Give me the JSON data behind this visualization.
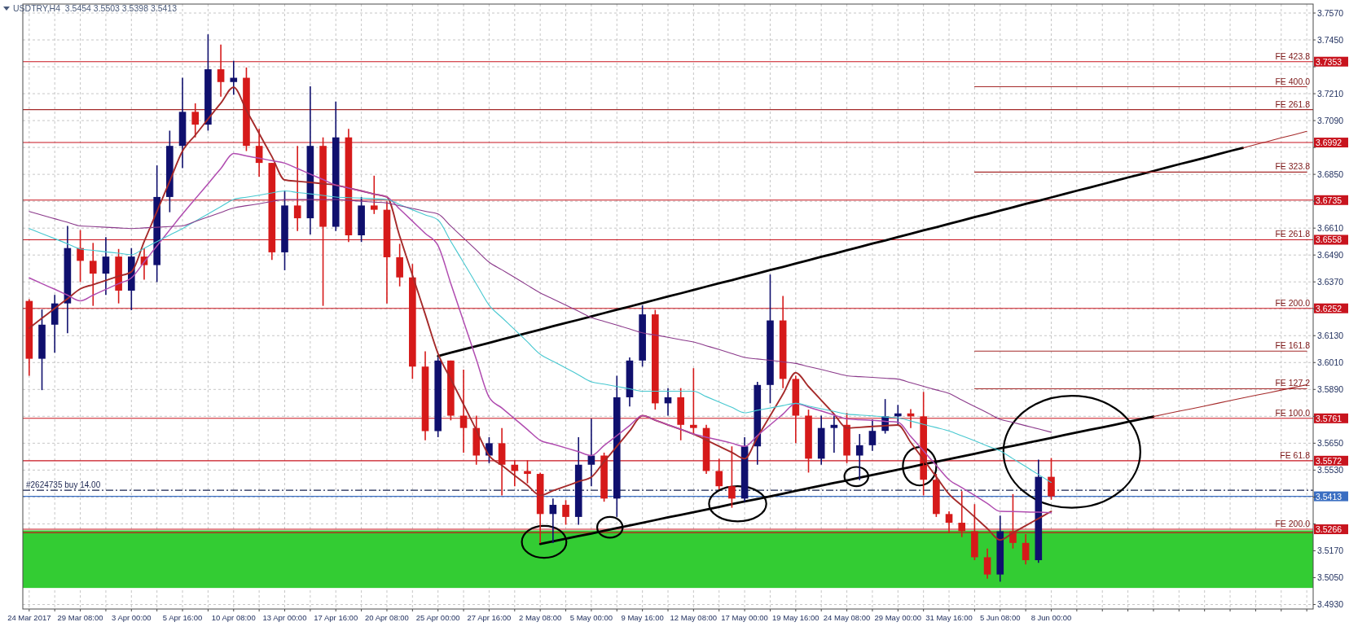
{
  "chart_data": {
    "type": "candlestick",
    "title": "USDTRY,H4  3.5454 3.5503 3.5398 3.5413",
    "categories": [
      "24 Mar 2017",
      null,
      null,
      null,
      "29 Mar 08:00",
      null,
      null,
      null,
      "3 Apr 00:00",
      null,
      null,
      null,
      "5 Apr 16:00",
      null,
      null,
      null,
      "10 Apr 08:00",
      null,
      null,
      null,
      "13 Apr 00:00",
      null,
      null,
      null,
      "17 Apr 16:00",
      null,
      null,
      null,
      "20 Apr 08:00",
      null,
      null,
      null,
      "25 Apr 00:00",
      null,
      null,
      null,
      "27 Apr 16:00",
      null,
      null,
      null,
      "2 May 08:00",
      null,
      null,
      null,
      "5 May 00:00",
      null,
      null,
      null,
      "9 May 16:00",
      null,
      null,
      null,
      "12 May 08:00",
      null,
      null,
      null,
      "17 May 00:00",
      null,
      null,
      null,
      "19 May 16:00",
      null,
      null,
      null,
      "24 May 08:00",
      null,
      null,
      null,
      "29 May 00:00",
      null,
      null,
      null,
      "31 May 16:00",
      null,
      null,
      null,
      "5 Jun 08:00",
      null,
      null,
      null,
      "8 Jun 00:00",
      null,
      null,
      null,
      null,
      null,
      null,
      null,
      null,
      null,
      null,
      null,
      null,
      null,
      null,
      null,
      null,
      null,
      null,
      null,
      null
    ],
    "ohlc": [
      [
        3.6285,
        3.6293,
        3.5951,
        3.6027
      ],
      [
        3.6027,
        3.6247,
        3.5887,
        3.6179
      ],
      [
        3.6179,
        3.6312,
        3.6054,
        3.6274
      ],
      [
        3.6274,
        3.662,
        3.6141,
        3.6521
      ],
      [
        3.6521,
        3.6601,
        3.6369,
        3.6464
      ],
      [
        3.6464,
        3.6544,
        3.6263,
        3.6407
      ],
      [
        3.6407,
        3.657,
        3.6312,
        3.6483
      ],
      [
        3.6483,
        3.6517,
        3.6274,
        3.6331
      ],
      [
        3.6331,
        3.6521,
        3.6244,
        3.6483
      ],
      [
        3.6483,
        3.6521,
        3.638,
        3.6445
      ],
      [
        3.6445,
        3.689,
        3.6369,
        3.6749
      ],
      [
        3.6749,
        3.7045,
        3.6681,
        3.6977
      ],
      [
        3.6977,
        3.7281,
        3.6878,
        3.7129
      ],
      [
        3.7129,
        3.7167,
        3.7015,
        3.7072
      ],
      [
        3.7072,
        3.7475,
        3.7045,
        3.7319
      ],
      [
        3.7319,
        3.7429,
        3.7197,
        3.7262
      ],
      [
        3.7262,
        3.7357,
        3.7205,
        3.7281
      ],
      [
        3.7281,
        3.7327,
        3.6954,
        3.6977
      ],
      [
        3.6977,
        3.7053,
        3.684,
        3.6901
      ],
      [
        3.6901,
        3.6901,
        3.6468,
        3.6502
      ],
      [
        3.6502,
        3.6776,
        3.6422,
        3.6711
      ],
      [
        3.6711,
        3.6977,
        3.6597,
        3.6654
      ],
      [
        3.6654,
        3.7243,
        3.6582,
        3.6977
      ],
      [
        3.6977,
        3.7015,
        3.6263,
        3.6616
      ],
      [
        3.6616,
        3.7175,
        3.6597,
        3.7015
      ],
      [
        3.7015,
        3.7053,
        3.6548,
        3.6578
      ],
      [
        3.6578,
        3.6749,
        3.6548,
        3.6711
      ],
      [
        3.6711,
        3.6844,
        3.6673,
        3.6692
      ],
      [
        3.6692,
        3.673,
        3.6274,
        3.648
      ],
      [
        3.648,
        3.654,
        3.635,
        3.639
      ],
      [
        3.639,
        3.645,
        3.5937,
        3.5992
      ],
      [
        3.5992,
        3.606,
        3.5663,
        3.5704
      ],
      [
        3.5704,
        3.6033,
        3.5677,
        3.6019
      ],
      [
        3.6019,
        3.6019,
        3.5752,
        3.5773
      ],
      [
        3.5773,
        3.5978,
        3.5608,
        3.5718
      ],
      [
        3.5718,
        3.5773,
        3.5554,
        3.5595
      ],
      [
        3.5595,
        3.5677,
        3.5561,
        3.565
      ],
      [
        3.565,
        3.5718,
        3.5417,
        3.5554
      ],
      [
        3.5554,
        3.5574,
        3.5458,
        3.5526
      ],
      [
        3.5526,
        3.5574,
        3.5471,
        3.5513
      ],
      [
        3.5513,
        3.5519,
        3.5204,
        3.5334
      ],
      [
        3.5334,
        3.5403,
        3.5204,
        3.5375
      ],
      [
        3.5375,
        3.5396,
        3.5286,
        3.5321
      ],
      [
        3.5321,
        3.5677,
        3.5286,
        3.5554
      ],
      [
        3.5554,
        3.5759,
        3.5458,
        3.5595
      ],
      [
        3.5595,
        3.5608,
        3.5389,
        3.5403
      ],
      [
        3.5403,
        3.5951,
        3.5321,
        3.5855
      ],
      [
        3.5855,
        3.6033,
        3.5814,
        3.6019
      ],
      [
        3.6019,
        3.6266,
        3.5992,
        3.6225
      ],
      [
        3.6225,
        3.6245,
        3.58,
        3.5828
      ],
      [
        3.5828,
        3.5896,
        3.5773,
        3.5855
      ],
      [
        3.5855,
        3.5896,
        3.5663,
        3.5732
      ],
      [
        3.5732,
        3.5985,
        3.5691,
        3.5718
      ],
      [
        3.5718,
        3.5732,
        3.5513,
        3.5526
      ],
      [
        3.5526,
        3.5581,
        3.5444,
        3.5458
      ],
      [
        3.5458,
        3.5636,
        3.5362,
        3.5403
      ],
      [
        3.5403,
        3.5677,
        3.5389,
        3.5636
      ],
      [
        3.5636,
        3.5924,
        3.5554,
        3.591
      ],
      [
        3.591,
        3.6403,
        3.5828,
        3.6198
      ],
      [
        3.6198,
        3.6307,
        3.5896,
        3.5937
      ],
      [
        3.5937,
        3.5951,
        3.565,
        3.5773
      ],
      [
        3.5773,
        3.58,
        3.5519,
        3.5581
      ],
      [
        3.5581,
        3.5773,
        3.5554,
        3.5718
      ],
      [
        3.5718,
        3.5773,
        3.5608,
        3.5732
      ],
      [
        3.5732,
        3.5786,
        3.5561,
        3.5595
      ],
      [
        3.5595,
        3.5691,
        3.5485,
        3.5641
      ],
      [
        3.5641,
        3.5757,
        3.5616,
        3.5705
      ],
      [
        3.5705,
        3.5847,
        3.5693,
        3.577
      ],
      [
        3.577,
        3.5821,
        3.5731,
        3.5783
      ],
      [
        3.5783,
        3.5802,
        3.5718,
        3.577
      ],
      [
        3.577,
        3.5879,
        3.5417,
        3.5487
      ],
      [
        3.5487,
        3.5513,
        3.5321,
        3.5334
      ],
      [
        3.5334,
        3.5346,
        3.525,
        3.5295
      ],
      [
        3.5295,
        3.5436,
        3.5231,
        3.5257
      ],
      [
        3.5257,
        3.5378,
        3.5128,
        3.5141
      ],
      [
        3.5141,
        3.518,
        3.5045,
        3.5064
      ],
      [
        3.5064,
        3.5327,
        3.5032,
        3.5257
      ],
      [
        3.5257,
        3.5423,
        3.518,
        3.5205
      ],
      [
        3.5205,
        3.5244,
        3.5109,
        3.5128
      ],
      [
        3.5128,
        3.5577,
        3.5116,
        3.55
      ],
      [
        3.55,
        3.5584,
        3.5398,
        3.5413
      ],
      null,
      null,
      null,
      null,
      null,
      null,
      null,
      null,
      null,
      null,
      null,
      null,
      null,
      null,
      null,
      null,
      null,
      null,
      null,
      null
    ],
    "colors": [
      "#d61a1a",
      "#10106e",
      "#10106e",
      "#10106e",
      "#d61a1a",
      "#d61a1a",
      "#10106e",
      "#d61a1a",
      "#10106e",
      "#d61a1a",
      "#10106e",
      "#10106e",
      "#10106e",
      "#d61a1a",
      "#10106e",
      "#d61a1a",
      "#10106e",
      "#d61a1a",
      "#d61a1a",
      "#d61a1a",
      "#10106e",
      "#d61a1a",
      "#10106e",
      "#d61a1a",
      "#10106e",
      "#d61a1a",
      "#10106e",
      "#d61a1a",
      "#d61a1a",
      "#d61a1a",
      "#d61a1a",
      "#d61a1a",
      "#10106e",
      "#d61a1a",
      "#d61a1a",
      "#d61a1a",
      "#10106e",
      "#d61a1a",
      "#d61a1a",
      "#d61a1a",
      "#d61a1a",
      "#10106e",
      "#d61a1a",
      "#10106e",
      "#10106e",
      "#d61a1a",
      "#10106e",
      "#10106e",
      "#10106e",
      "#d61a1a",
      "#10106e",
      "#d61a1a",
      "#d61a1a",
      "#d61a1a",
      "#d61a1a",
      "#d61a1a",
      "#10106e",
      "#10106e",
      "#10106e",
      "#d61a1a",
      "#d61a1a",
      "#d61a1a",
      "#10106e",
      "#10106e",
      "#d61a1a",
      "#10106e",
      "#10106e",
      "#10106e",
      "#10106e",
      "#d61a1a",
      "#d61a1a",
      "#d61a1a",
      "#d61a1a",
      "#d61a1a",
      "#d61a1a",
      "#d61a1a",
      "#10106e",
      "#d61a1a",
      "#d61a1a",
      "#10106e",
      "#d61a1a",
      null,
      null,
      null,
      null,
      null,
      null,
      null,
      null,
      null,
      null,
      null,
      null,
      null,
      null,
      null,
      null,
      null,
      null,
      null,
      null
    ],
    "series": [
      {
        "type": "line",
        "color": "#a52a2a",
        "values": [
          3.6164,
          3.6208,
          3.6252,
          3.6295,
          3.6339,
          3.6358,
          3.6377,
          3.6396,
          3.6415,
          3.655,
          3.6685,
          3.6819,
          3.6954,
          3.7025,
          3.7097,
          3.7168,
          3.7239,
          3.7136,
          3.7032,
          3.6929,
          3.6825,
          3.6819,
          3.6814,
          3.6808,
          3.6802,
          3.6789,
          3.6776,
          3.6762,
          3.6749,
          3.6574,
          3.64,
          3.6225,
          3.605,
          3.5936,
          3.5823,
          3.5709,
          3.5595,
          3.5551,
          3.5506,
          3.5462,
          3.5417,
          3.5438,
          3.5458,
          3.5479,
          3.5499,
          3.5568,
          3.5636,
          3.5705,
          3.5773,
          3.5753,
          3.5732,
          3.5712,
          3.5691,
          3.5664,
          3.5636,
          3.5609,
          3.5581,
          3.5677,
          3.5773,
          3.5869,
          3.5965,
          3.5903,
          3.5842,
          3.578,
          3.5718,
          3.5721,
          3.5725,
          3.5728,
          3.5731,
          3.5654,
          3.5577,
          3.55,
          3.5423,
          3.5372,
          3.5321,
          3.5269,
          3.5218,
          3.525,
          3.5282,
          3.5314,
          3.5346,
          null,
          null,
          null,
          null,
          null,
          null,
          null,
          null,
          null,
          null,
          null,
          null,
          null,
          null,
          null,
          null,
          null,
          null,
          null,
          null
        ]
      },
      {
        "type": "line",
        "color": "#b04cb0",
        "values": [
          3.6388,
          3.6362,
          3.6337,
          3.6311,
          3.6285,
          3.6311,
          3.6337,
          3.6362,
          3.6388,
          3.6459,
          3.6531,
          3.6602,
          3.6673,
          3.6741,
          3.6808,
          3.6876,
          3.6943,
          3.6932,
          3.6922,
          3.6911,
          3.69,
          3.6876,
          3.6851,
          3.6827,
          3.6802,
          3.6789,
          3.6776,
          3.6762,
          3.6749,
          3.6695,
          3.6641,
          3.6586,
          3.6532,
          3.6363,
          3.6194,
          3.6024,
          3.5855,
          3.5807,
          3.5759,
          3.5711,
          3.5663,
          3.5646,
          3.5629,
          3.5612,
          3.5595,
          3.564,
          3.5684,
          3.5729,
          3.5773,
          3.5753,
          3.5732,
          3.5712,
          3.5691,
          3.5677,
          3.5664,
          3.565,
          3.5636,
          3.5684,
          3.5732,
          3.578,
          3.5828,
          3.5811,
          3.5794,
          3.5776,
          3.5759,
          3.5755,
          3.5752,
          3.5748,
          3.5744,
          3.568,
          3.5616,
          3.5551,
          3.5487,
          3.5452,
          3.5417,
          3.5381,
          3.5346,
          3.5345,
          3.5343,
          3.5342,
          3.534,
          null,
          null,
          null,
          null,
          null,
          null,
          null,
          null,
          null,
          null,
          null,
          null,
          null,
          null,
          null,
          null,
          null,
          null,
          null,
          null
        ]
      },
      {
        "type": "line",
        "color": "#48c8d0",
        "values": [
          3.6608,
          3.6585,
          3.6563,
          3.654,
          3.6517,
          3.6511,
          3.6504,
          3.6498,
          3.6491,
          3.652,
          3.655,
          3.6579,
          3.6608,
          3.6641,
          3.6673,
          3.6706,
          3.6738,
          3.6748,
          3.6757,
          3.6767,
          3.6776,
          3.6769,
          3.6763,
          3.6756,
          3.6749,
          3.6746,
          3.6744,
          3.6741,
          3.6738,
          3.6715,
          3.6692,
          3.6669,
          3.6646,
          3.6551,
          3.6456,
          3.6361,
          3.6266,
          3.6211,
          3.6157,
          3.6102,
          3.6047,
          3.6016,
          3.5986,
          3.5955,
          3.5924,
          3.5914,
          3.5903,
          3.5893,
          3.5882,
          3.5882,
          3.5882,
          3.5882,
          3.5882,
          3.5858,
          3.5834,
          3.581,
          3.5786,
          3.5797,
          3.5807,
          3.5818,
          3.5828,
          3.5816,
          3.5804,
          3.5792,
          3.578,
          3.5776,
          3.5772,
          3.5767,
          3.5763,
          3.5749,
          3.5734,
          3.572,
          3.5705,
          3.5683,
          3.5661,
          3.5638,
          3.5616,
          3.5581,
          3.5546,
          3.551,
          3.5475,
          null,
          null,
          null,
          null,
          null,
          null,
          null,
          null,
          null,
          null,
          null,
          null,
          null,
          null,
          null,
          null,
          null,
          null,
          null,
          null
        ]
      },
      {
        "type": "line",
        "color": "#8b3a8b",
        "values": [
          3.6684,
          3.6668,
          3.6652,
          3.6636,
          3.662,
          3.6617,
          3.6614,
          3.6611,
          3.6608,
          3.6611,
          3.6614,
          3.6617,
          3.662,
          3.664,
          3.666,
          3.668,
          3.67,
          3.671,
          3.6719,
          3.6729,
          3.6738,
          3.6738,
          3.6738,
          3.6738,
          3.6738,
          3.6734,
          3.673,
          3.6726,
          3.6722,
          3.671,
          3.6698,
          3.6685,
          3.6673,
          3.6619,
          3.6566,
          3.6512,
          3.6458,
          3.6424,
          3.639,
          3.6355,
          3.6321,
          3.6294,
          3.6266,
          3.6239,
          3.6211,
          3.6194,
          3.6177,
          3.616,
          3.6143,
          3.6133,
          3.6123,
          3.6112,
          3.6102,
          3.6085,
          3.6068,
          3.605,
          3.6033,
          3.6026,
          3.602,
          3.6013,
          3.6006,
          3.5992,
          3.5979,
          3.5965,
          3.5951,
          3.5947,
          3.5944,
          3.594,
          3.5936,
          3.592,
          3.5904,
          3.5888,
          3.5872,
          3.5843,
          3.5814,
          3.5786,
          3.5757,
          3.5743,
          3.5728,
          3.5714,
          3.5699,
          null,
          null,
          null,
          null,
          null,
          null,
          null,
          null,
          null,
          null,
          null,
          null,
          null,
          null,
          null,
          null,
          null,
          null,
          null,
          null
        ]
      },
      {
        "type": "line",
        "color": "#a52a2a",
        "values": [
          null,
          null,
          null,
          null,
          null,
          null,
          null,
          null,
          null,
          null,
          null,
          null,
          null,
          null,
          null,
          null,
          null,
          null,
          null,
          null,
          null,
          null,
          null,
          null,
          null,
          null,
          null,
          null,
          null,
          null,
          null,
          null,
          null,
          null,
          null,
          null,
          null,
          null,
          null,
          null,
          null,
          null,
          null,
          null,
          null,
          null,
          null,
          null,
          null,
          null,
          null,
          null,
          null,
          null,
          null,
          null,
          null,
          null,
          null,
          null,
          null,
          null,
          null,
          null,
          null,
          null,
          null,
          null,
          null,
          null,
          null,
          null,
          null,
          null,
          3.7241,
          3.7241,
          3.7241,
          3.7241,
          3.7241,
          3.7241,
          3.7241,
          3.7241,
          3.7241,
          3.7241,
          3.7241,
          3.7241,
          3.7241,
          3.7241,
          3.7241,
          3.7241,
          3.7241,
          3.7241,
          3.7241,
          3.7241,
          3.7241,
          3.7241,
          3.7241,
          3.7241,
          3.7241,
          3.7241,
          3.7241
        ]
      },
      {
        "type": "line",
        "color": "#a52a2a",
        "values": [
          null,
          null,
          null,
          null,
          null,
          null,
          null,
          null,
          null,
          null,
          null,
          null,
          null,
          null,
          null,
          null,
          null,
          null,
          null,
          null,
          null,
          null,
          null,
          null,
          null,
          null,
          null,
          null,
          null,
          null,
          null,
          null,
          null,
          null,
          null,
          null,
          null,
          null,
          null,
          null,
          null,
          null,
          null,
          null,
          null,
          null,
          null,
          null,
          null,
          null,
          null,
          null,
          null,
          null,
          null,
          null,
          null,
          null,
          null,
          null,
          null,
          null,
          null,
          null,
          null,
          null,
          null,
          null,
          null,
          null,
          null,
          null,
          null,
          null,
          3.686,
          3.686,
          3.686,
          3.686,
          3.686,
          3.686,
          3.686,
          3.686,
          3.686,
          3.686,
          3.686,
          3.686,
          3.686,
          3.686,
          3.686,
          3.686,
          3.686,
          3.686,
          3.686,
          3.686,
          3.686,
          3.686,
          3.686,
          3.686,
          3.686,
          3.686,
          3.686
        ]
      },
      {
        "type": "line",
        "color": "#a52a2a",
        "values": [
          null,
          null,
          null,
          null,
          null,
          null,
          null,
          null,
          null,
          null,
          null,
          null,
          null,
          null,
          null,
          null,
          null,
          null,
          null,
          null,
          null,
          null,
          null,
          null,
          null,
          null,
          null,
          null,
          null,
          null,
          null,
          null,
          null,
          null,
          null,
          null,
          null,
          null,
          null,
          null,
          null,
          null,
          null,
          null,
          null,
          null,
          null,
          null,
          null,
          null,
          null,
          null,
          null,
          null,
          null,
          null,
          null,
          null,
          null,
          null,
          null,
          null,
          null,
          null,
          null,
          null,
          null,
          null,
          null,
          null,
          null,
          null,
          null,
          null,
          3.6061,
          3.6061,
          3.6061,
          3.6061,
          3.6061,
          3.6061,
          3.6061,
          3.6061,
          3.6061,
          3.6061,
          3.6061,
          3.6061,
          3.6061,
          3.6061,
          3.6061,
          3.6061,
          3.6061,
          3.6061,
          3.6061,
          3.6061,
          3.6061,
          3.6061,
          3.6061,
          3.6061,
          3.6061,
          3.6061,
          3.6061
        ]
      },
      {
        "type": "line",
        "color": "#a52a2a",
        "values": [
          null,
          null,
          null,
          null,
          null,
          null,
          null,
          null,
          null,
          null,
          null,
          null,
          null,
          null,
          null,
          null,
          null,
          null,
          null,
          null,
          null,
          null,
          null,
          null,
          null,
          null,
          null,
          null,
          null,
          null,
          null,
          null,
          null,
          null,
          null,
          null,
          null,
          null,
          null,
          null,
          null,
          null,
          null,
          null,
          null,
          null,
          null,
          null,
          null,
          null,
          null,
          null,
          null,
          null,
          null,
          null,
          null,
          null,
          null,
          null,
          null,
          null,
          null,
          null,
          null,
          null,
          null,
          null,
          null,
          null,
          null,
          null,
          null,
          null,
          3.5893,
          3.5893,
          3.5893,
          3.5893,
          3.5893,
          3.5893,
          3.5893,
          3.5893,
          3.5893,
          3.5893,
          3.5893,
          3.5893,
          3.5893,
          3.5893,
          3.5893,
          3.5893,
          3.5893,
          3.5893,
          3.5893,
          3.5893,
          3.5893,
          3.5893,
          3.5893,
          3.5893,
          3.5893,
          3.5893,
          3.5893
        ]
      },
      {
        "type": "line",
        "color": "#000000",
        "values": [
          null,
          null,
          null,
          null,
          null,
          null,
          null,
          null,
          null,
          null,
          null,
          null,
          null,
          null,
          null,
          null,
          null,
          null,
          null,
          null,
          null,
          null,
          null,
          null,
          null,
          null,
          null,
          null,
          null,
          null,
          null,
          null,
          3.6039,
          3.6054,
          3.6069,
          3.6083,
          3.6098,
          3.6113,
          3.6128,
          3.6142,
          3.6157,
          3.6172,
          3.6187,
          3.6201,
          3.6216,
          3.6231,
          3.6246,
          3.626,
          3.6275,
          3.629,
          3.6305,
          3.6319,
          3.6334,
          3.6349,
          3.6364,
          3.6378,
          3.6393,
          3.6408,
          3.6423,
          3.6437,
          3.6452,
          3.6467,
          3.6482,
          3.6496,
          3.6511,
          3.6526,
          3.6541,
          3.6555,
          3.657,
          3.6585,
          3.66,
          3.6614,
          3.6629,
          3.6644,
          3.6659,
          3.6673,
          3.6688,
          3.6703,
          3.6718,
          3.6732,
          3.6747,
          3.6762,
          3.6777,
          3.6791,
          3.6806,
          3.6821,
          3.6836,
          3.685,
          3.6865,
          3.688,
          3.6895,
          3.6909,
          3.6924,
          3.6939,
          3.6954,
          3.6968,
          null,
          null,
          null,
          null,
          null
        ]
      },
      {
        "type": "line",
        "color": "#a52a2a",
        "values": [
          null,
          null,
          null,
          null,
          null,
          null,
          null,
          null,
          null,
          null,
          null,
          null,
          null,
          null,
          null,
          null,
          null,
          null,
          null,
          null,
          null,
          null,
          null,
          null,
          null,
          null,
          null,
          null,
          null,
          null,
          null,
          null,
          null,
          null,
          null,
          null,
          null,
          null,
          null,
          null,
          null,
          null,
          null,
          null,
          null,
          null,
          null,
          null,
          null,
          null,
          null,
          null,
          null,
          null,
          null,
          null,
          null,
          null,
          null,
          null,
          null,
          null,
          null,
          null,
          null,
          null,
          null,
          null,
          null,
          null,
          null,
          null,
          null,
          null,
          null,
          null,
          null,
          null,
          null,
          null,
          null,
          null,
          null,
          null,
          null,
          null,
          null,
          null,
          null,
          null,
          null,
          null,
          null,
          null,
          null,
          3.6968,
          3.6983,
          3.6998,
          3.7013,
          3.7027,
          3.7042
        ]
      },
      {
        "type": "line",
        "color": "#000000",
        "values": [
          null,
          null,
          null,
          null,
          null,
          null,
          null,
          null,
          null,
          null,
          null,
          null,
          null,
          null,
          null,
          null,
          null,
          null,
          null,
          null,
          null,
          null,
          null,
          null,
          null,
          null,
          null,
          null,
          null,
          null,
          null,
          null,
          null,
          null,
          null,
          null,
          null,
          null,
          null,
          null,
          3.52,
          3.5212,
          3.5224,
          3.5236,
          3.5247,
          3.5259,
          3.5271,
          3.5283,
          3.5295,
          3.5307,
          3.5319,
          3.533,
          3.5342,
          3.5354,
          3.5366,
          3.5378,
          3.539,
          3.5401,
          3.5413,
          3.5425,
          3.5437,
          3.5449,
          3.5461,
          3.5473,
          3.5484,
          3.5496,
          3.5508,
          3.552,
          3.5532,
          3.5544,
          3.5556,
          3.5567,
          3.5579,
          3.5591,
          3.5603,
          3.5615,
          3.5627,
          3.5638,
          3.565,
          3.5662,
          3.5674,
          3.5686,
          3.5698,
          3.571,
          3.5721,
          3.5733,
          3.5745,
          3.5757,
          3.5769,
          null,
          null,
          null,
          null,
          null,
          null,
          null,
          null,
          null,
          null,
          null,
          null
        ]
      },
      {
        "type": "line",
        "color": "#a52a2a",
        "values": [
          null,
          null,
          null,
          null,
          null,
          null,
          null,
          null,
          null,
          null,
          null,
          null,
          null,
          null,
          null,
          null,
          null,
          null,
          null,
          null,
          null,
          null,
          null,
          null,
          null,
          null,
          null,
          null,
          null,
          null,
          null,
          null,
          null,
          null,
          null,
          null,
          null,
          null,
          null,
          null,
          null,
          null,
          null,
          null,
          null,
          null,
          null,
          null,
          null,
          null,
          null,
          null,
          null,
          null,
          null,
          null,
          null,
          null,
          null,
          null,
          null,
          null,
          null,
          null,
          null,
          null,
          null,
          null,
          null,
          null,
          null,
          null,
          null,
          null,
          null,
          null,
          null,
          null,
          null,
          null,
          null,
          null,
          null,
          null,
          null,
          null,
          null,
          null,
          3.5769,
          3.5781,
          3.5793,
          3.5804,
          3.5816,
          3.5828,
          3.584,
          3.5852,
          3.5864,
          3.5875,
          3.5887,
          3.5899,
          3.5911
        ]
      }
    ],
    "ylim": [
      3.491,
      3.761
    ],
    "yticks": [
      {
        "value": 3.493,
        "label": "3.4930"
      },
      {
        "value": 3.505,
        "label": "3.5050"
      },
      {
        "value": 3.517,
        "label": "3.5170"
      },
      {
        "value": 3.529,
        "label": null
      },
      {
        "value": 3.541,
        "label": null
      },
      {
        "value": 3.553,
        "label": "3.5530"
      },
      {
        "value": 3.565,
        "label": "3.5650"
      },
      {
        "value": 3.577,
        "label": null
      },
      {
        "value": 3.589,
        "label": "3.5890"
      },
      {
        "value": 3.601,
        "label": "3.6010"
      },
      {
        "value": 3.613,
        "label": "3.6130"
      },
      {
        "value": 3.625,
        "label": null
      },
      {
        "value": 3.637,
        "label": "3.6370"
      },
      {
        "value": 3.649,
        "label": "3.6490"
      },
      {
        "value": 3.661,
        "label": "3.6610"
      },
      {
        "value": 3.673,
        "label": null
      },
      {
        "value": 3.685,
        "label": "3.6850"
      },
      {
        "value": 3.697,
        "label": null
      },
      {
        "value": 3.709,
        "label": "3.7090"
      },
      {
        "value": 3.721,
        "label": "3.7210"
      },
      {
        "value": 3.733,
        "label": null
      },
      {
        "value": 3.745,
        "label": "3.7450"
      },
      {
        "value": 3.757,
        "label": "3.7570"
      }
    ],
    "grid": true,
    "bands": [
      {
        "axis": "y",
        "from": 3.5004,
        "to": 3.5261,
        "color": "#33cc33"
      }
    ],
    "ref_lines": [
      {
        "axis": "y",
        "value": 3.7353,
        "label": "3.7353",
        "color": "#c8141e"
      },
      {
        "axis": "y",
        "value": 3.7139,
        "label": null,
        "color": "#a52a2a"
      },
      {
        "axis": "y",
        "value": 3.6992,
        "label": "3.6992",
        "color": "#c8141e"
      },
      {
        "axis": "y",
        "value": 3.6735,
        "label": "3.6735",
        "color": "#c8141e"
      },
      {
        "axis": "y",
        "value": 3.6558,
        "label": "3.6558",
        "color": "#c8141e"
      },
      {
        "axis": "y",
        "value": 3.6252,
        "label": "3.6252",
        "color": "#c8141e"
      },
      {
        "axis": "y",
        "value": 3.5761,
        "label": "3.5761",
        "color": "#c8141e"
      },
      {
        "axis": "y",
        "value": 3.5572,
        "label": "3.5572",
        "color": "#c8141e"
      },
      {
        "axis": "y",
        "value": 3.5266,
        "label": "3.5266",
        "color": "#c8141e"
      },
      {
        "axis": "y",
        "value": 3.5251,
        "label": null,
        "color": "#c8141e"
      },
      {
        "axis": "y",
        "value": 3.5413,
        "label": "3.5413",
        "color": "#3a6ec2"
      },
      {
        "axis": "y",
        "value": 3.544,
        "label": "#2624735 buy 14.00",
        "color": "#1a2450",
        "line_style": "dashed"
      }
    ],
    "annotations": [
      {
        "text": "FE 423.8",
        "y": 3.7353
      },
      {
        "text": "FE 400.0",
        "y": 3.7241
      },
      {
        "text": "FE 261.8",
        "y": 3.7139
      },
      {
        "text": "FE 323.8",
        "y": 3.686
      },
      {
        "text": "FE 261.8",
        "y": 3.6558
      },
      {
        "text": "FE 200.0",
        "y": 3.6252
      },
      {
        "text": "FE 161.8",
        "y": 3.6061
      },
      {
        "text": "FE 127.2",
        "y": 3.5893
      },
      {
        "text": "FE 100.0",
        "y": 3.5761
      },
      {
        "text": "FE 61.8",
        "y": 3.5572
      },
      {
        "text": "FE 200.0",
        "y": 3.5266
      }
    ]
  }
}
